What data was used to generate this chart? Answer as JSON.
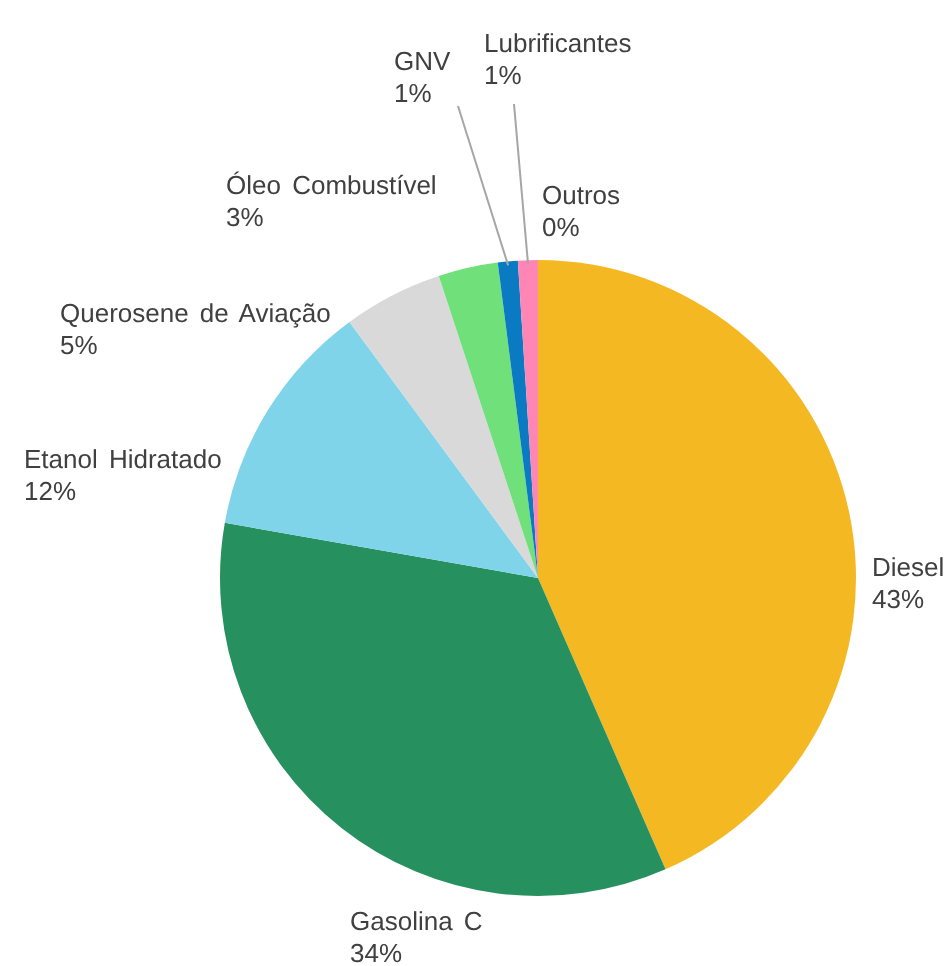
{
  "chart_data": {
    "type": "pie",
    "categories": [
      "Diesel",
      "Gasolina C",
      "Etanol Hidratado",
      "Querosene de Aviação",
      "Óleo Combustível",
      "GNV",
      "Lubrificantes",
      "Outros"
    ],
    "values": [
      43,
      34,
      12,
      5,
      3,
      1,
      1,
      0
    ],
    "colors": [
      "#f4b823",
      "#27905f",
      "#7fd4ea",
      "#d9d9d9",
      "#6fe07a",
      "#0a7bc2",
      "#ff85b5",
      null
    ],
    "value_labels": [
      "43%",
      "34%",
      "12%",
      "5%",
      "3%",
      "1%",
      "1%",
      "0%"
    ]
  }
}
